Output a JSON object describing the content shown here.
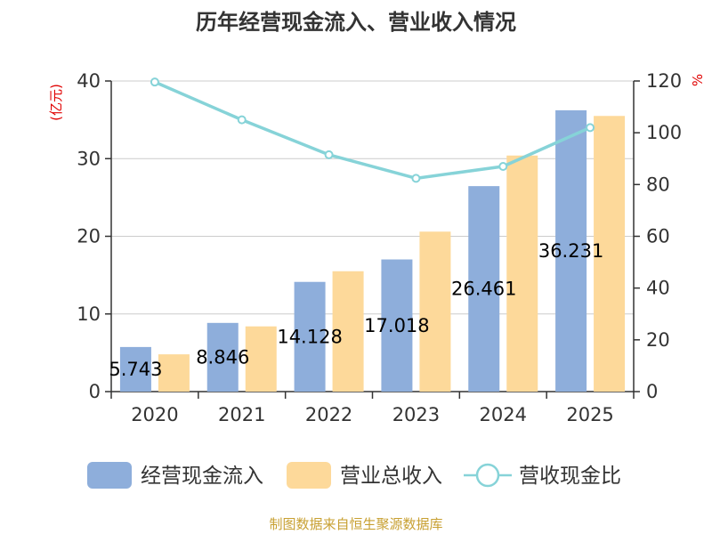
{
  "chart_data": {
    "type": "bar",
    "title": "历年经营现金流入、营业收入情况",
    "categories": [
      "2020",
      "2021",
      "2022",
      "2023",
      "2024",
      "2025"
    ],
    "series": [
      {
        "name": "经营现金流入",
        "kind": "bar",
        "axis": "left",
        "color": "#8eaedb",
        "values": [
          5.743,
          8.846,
          14.128,
          17.018,
          26.461,
          36.231
        ],
        "labels": [
          "5.743",
          "8.846",
          "14.128",
          "17.018",
          "26.461",
          "36.231"
        ]
      },
      {
        "name": "营业总收入",
        "kind": "bar",
        "axis": "left",
        "color": "#fdd99a",
        "values": [
          4.8,
          8.4,
          15.5,
          20.6,
          30.4,
          35.5
        ]
      },
      {
        "name": "营收现金比",
        "kind": "line",
        "axis": "right",
        "color": "#86d3d8",
        "values": [
          119.6,
          105.0,
          91.5,
          82.4,
          87.0,
          102.0
        ]
      }
    ],
    "yleft": {
      "unit": "(亿元)",
      "min": 0,
      "max": 40,
      "ticks": [
        0,
        10,
        20,
        30,
        40
      ]
    },
    "yright": {
      "unit": "%",
      "min": 0,
      "max": 120,
      "ticks": [
        0,
        20,
        40,
        60,
        80,
        100,
        120
      ]
    },
    "grid": true,
    "legend_position": "bottom"
  },
  "footer": {
    "source": "制图数据来自恒生聚源数据库"
  }
}
